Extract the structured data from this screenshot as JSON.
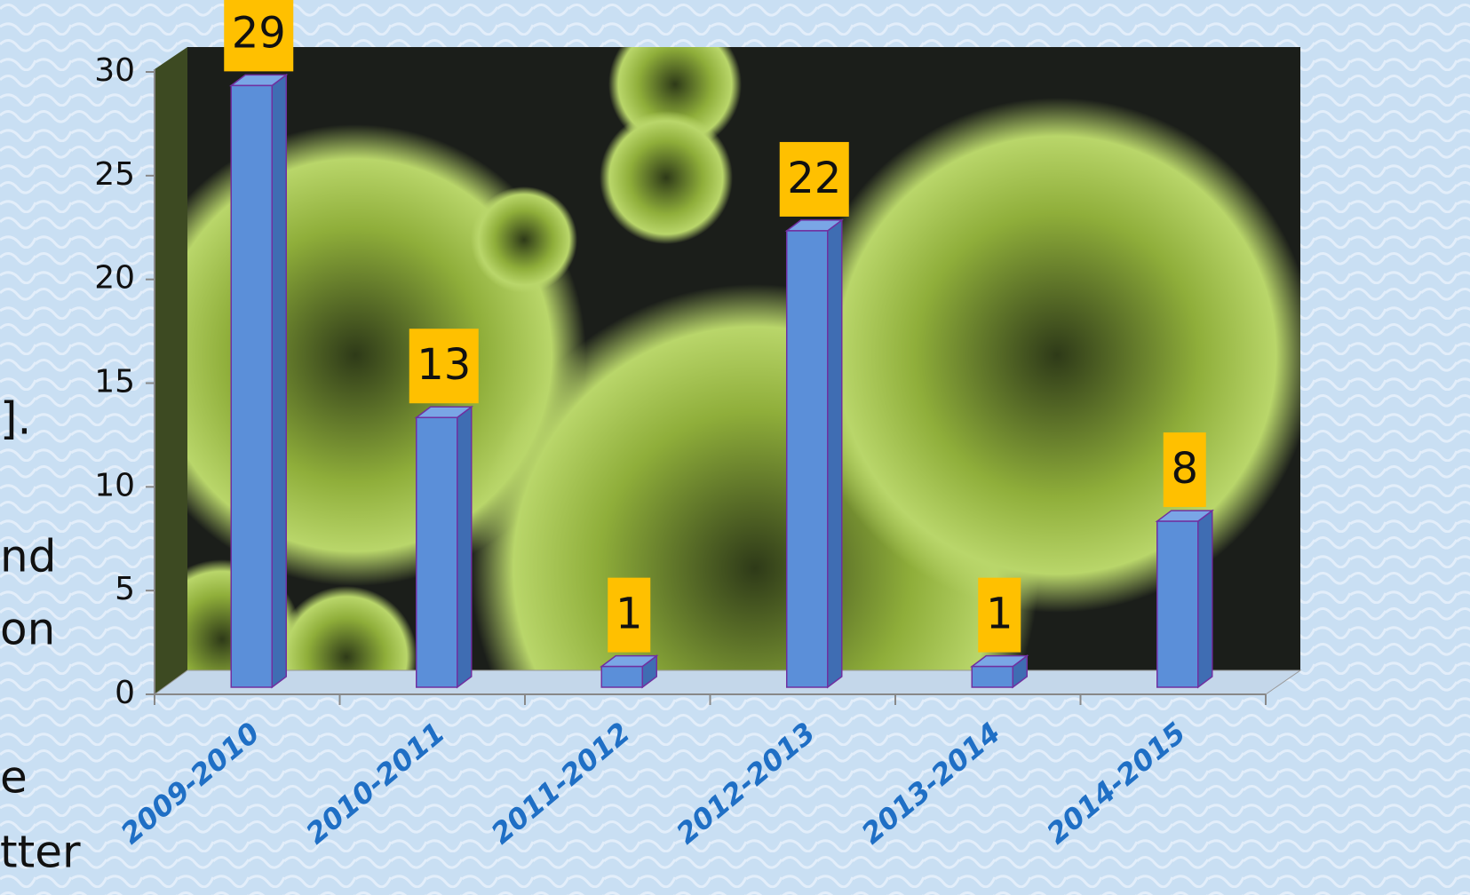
{
  "chart_data": {
    "type": "bar",
    "categories": [
      "2009-2010",
      "2010-2011",
      "2011-2012",
      "2012-2013",
      "2013-2014",
      "2014-2015"
    ],
    "values": [
      29,
      13,
      1,
      22,
      1,
      8
    ],
    "color": "#5b8fd9",
    "label_color": "#ffc000",
    "ylim": [
      0,
      30
    ],
    "yticks": [
      0,
      5,
      10,
      15,
      20,
      25,
      30
    ]
  },
  "side_text": [
    "].",
    "nd",
    "on",
    "e",
    "tter"
  ]
}
